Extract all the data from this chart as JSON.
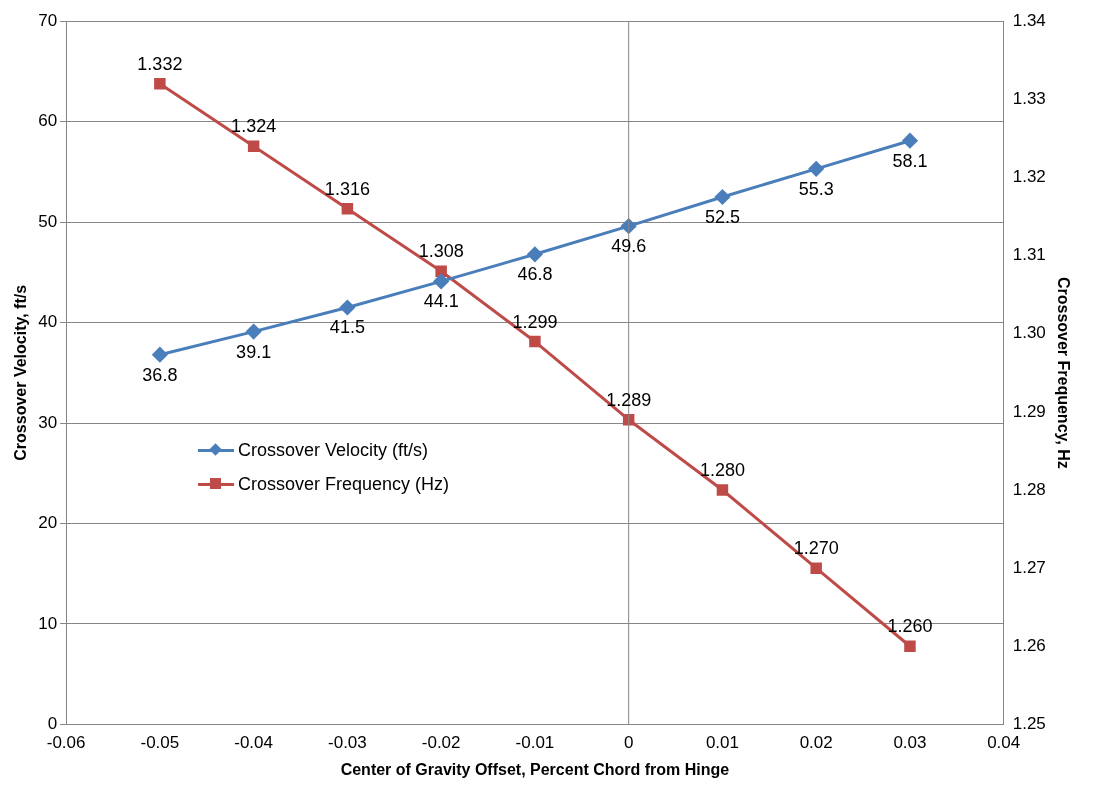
{
  "chart_data": {
    "type": "line",
    "xlabel": "Center of Gravity Offset, Percent Chord from Hinge",
    "ylabel": "Crossover Velocity, ft/s",
    "y2label": "Crossover Frequency, Hz",
    "x": [
      -0.05,
      -0.04,
      -0.03,
      -0.02,
      -0.01,
      0,
      0.01,
      0.02,
      0.03
    ],
    "series": [
      {
        "name": "Crossover Velocity (ft/s)",
        "color": "#4a7ebb",
        "marker": "diamond",
        "values": [
          36.8,
          39.1,
          41.5,
          44.1,
          46.8,
          49.6,
          52.5,
          55.3,
          58.1
        ],
        "value_labels": [
          "36.8",
          "39.1",
          "41.5",
          "44.1",
          "46.8",
          "49.6",
          "52.5",
          "55.3",
          "58.1"
        ]
      },
      {
        "name": "Crossover Frequency (Hz)",
        "color": "#be4b48",
        "marker": "square",
        "axis": "y2",
        "values": [
          1.332,
          1.324,
          1.316,
          1.308,
          1.299,
          1.289,
          1.28,
          1.27,
          1.26
        ],
        "value_labels": [
          "1.332",
          "1.324",
          "1.316",
          "1.308",
          "1.299",
          "1.289",
          "1.280",
          "1.270",
          "1.260"
        ]
      }
    ],
    "xlim": [
      -0.06,
      0.04
    ],
    "xticks": [
      -0.06,
      -0.05,
      -0.04,
      -0.03,
      -0.02,
      -0.01,
      0,
      0.01,
      0.02,
      0.03,
      0.04
    ],
    "ylim": [
      0,
      70
    ],
    "yticks": [
      0,
      10,
      20,
      30,
      40,
      50,
      60,
      70
    ],
    "y2lim": [
      1.25,
      1.34
    ],
    "y2ticks": [
      1.25,
      1.26,
      1.27,
      1.28,
      1.29,
      {
        "value": 1.3,
        "label": "1.30"
      },
      1.31,
      1.32,
      1.33,
      1.34
    ],
    "ref_lines": [
      {
        "axis": "x",
        "value": 0,
        "label": null,
        "color": "#868686"
      }
    ],
    "grid": "y",
    "legend": "left"
  }
}
